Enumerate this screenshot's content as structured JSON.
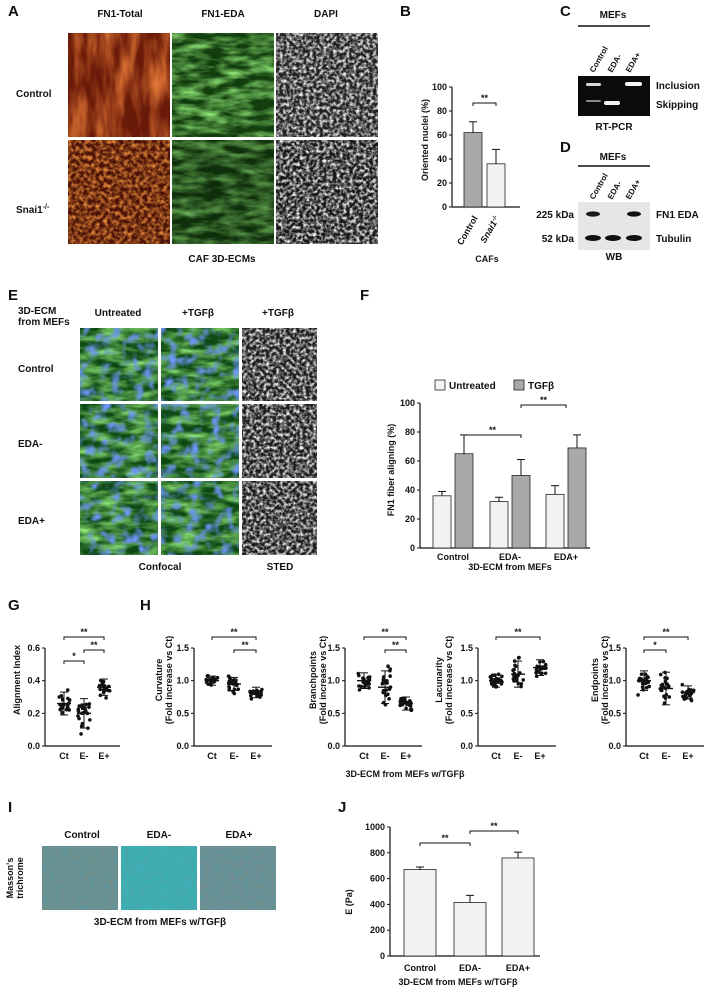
{
  "panels": {
    "A": {
      "letter": "A",
      "cols": [
        "FN1-Total",
        "FN1-EDA",
        "DAPI"
      ],
      "rows": [
        "Control",
        "Snai1"
      ],
      "row2_sup": "-/-",
      "caption": "CAF 3D-ECMs"
    },
    "B": {
      "letter": "B",
      "ylabel": "Oriented nuclei (%)",
      "ticks": [
        "0",
        "20",
        "40",
        "60",
        "80",
        "100"
      ],
      "categories": [
        "Control",
        "Snai1"
      ],
      "cat2_sup": "-/-",
      "sig": "**",
      "caption": "CAFs"
    },
    "C": {
      "letter": "C",
      "title": "MEFs",
      "lanes": [
        "Control",
        "EDA-",
        "EDA+"
      ],
      "bands": [
        "Inclusion",
        "Skipping"
      ],
      "caption": "RT-PCR"
    },
    "D": {
      "letter": "D",
      "title": "MEFs",
      "lanes": [
        "Control",
        "EDA-",
        "EDA+"
      ],
      "sizes": [
        "225 kDa",
        "52 kDa"
      ],
      "bands": [
        "FN1 EDA",
        "Tubulin"
      ],
      "caption": "WB"
    },
    "E": {
      "letter": "E",
      "corner": [
        "3D-ECM",
        "from MEFs"
      ],
      "cols": [
        "Untreated",
        "+TGFβ",
        "+TGFβ"
      ],
      "rows": [
        "Control",
        "EDA-",
        "EDA+"
      ],
      "bottom": [
        "Confocal",
        "STED"
      ]
    },
    "F": {
      "letter": "F",
      "legend": [
        "Untreated",
        "TGFβ"
      ],
      "ylabel": "FN1 fiber aligning (%)",
      "ticks": [
        "0",
        "20",
        "40",
        "60",
        "80",
        "100"
      ],
      "groups": [
        "Control",
        "EDA-",
        "EDA+"
      ],
      "sig": [
        "**",
        "**"
      ],
      "xlabel": "3D-ECM from MEFs"
    },
    "G": {
      "letter": "G",
      "ylabel": "Alignment Index",
      "ticks": [
        "0.0",
        "0.2",
        "0.4",
        "0.6"
      ],
      "groups": [
        "Ct",
        "E-",
        "E+"
      ],
      "sig": [
        "**",
        "*",
        "**"
      ]
    },
    "H": {
      "letter": "H",
      "xlabel": "3D-ECM from MEFs w/TGFβ",
      "groups": [
        "Ct",
        "E-",
        "E+"
      ],
      "ticks": [
        "0.0",
        "0.5",
        "1.0",
        "1.5"
      ],
      "plots": [
        {
          "ylabel": "Curvature",
          "ysub": "(Fold increase vs Ct)",
          "sig": [
            "**",
            "**"
          ]
        },
        {
          "ylabel": "Branchpoints",
          "ysub": "(Fold increase vs Ct)",
          "sig": [
            "**",
            "**"
          ]
        },
        {
          "ylabel": "Lacunarity",
          "ysub": "(Fold increase vs Ct)",
          "sig": [
            "**"
          ]
        },
        {
          "ylabel": "Endpoints",
          "ysub": "(Fold increase vs Ct)",
          "sig": [
            "**",
            "*"
          ]
        }
      ]
    },
    "I": {
      "letter": "I",
      "cols": [
        "Control",
        "EDA-",
        "EDA+"
      ],
      "ylabel": [
        "Masson's",
        "trichrome"
      ],
      "caption": "3D-ECM from MEFs w/TGFβ"
    },
    "J": {
      "letter": "J",
      "ylabel": "E (Pa)",
      "ticks": [
        "0",
        "200",
        "400",
        "600",
        "800",
        "1000"
      ],
      "categories": [
        "Control",
        "EDA-",
        "EDA+"
      ],
      "sig": [
        "**",
        "**"
      ],
      "xlabel": "3D-ECM from MEFs w/TGFβ"
    }
  },
  "chart_data": [
    {
      "type": "bar",
      "panel": "B",
      "categories": [
        "Control",
        "Snai1-/-"
      ],
      "values": [
        62,
        36
      ],
      "errors": [
        9,
        12
      ],
      "ylim": [
        0,
        100
      ]
    },
    {
      "type": "bar",
      "panel": "F",
      "categories": [
        "Control",
        "EDA-",
        "EDA+"
      ],
      "series": [
        {
          "name": "Untreated",
          "values": [
            36,
            32,
            37
          ],
          "errors": [
            3,
            3,
            6
          ]
        },
        {
          "name": "TGFβ",
          "values": [
            65,
            50,
            69
          ],
          "errors": [
            13,
            11,
            9
          ]
        }
      ],
      "ylim": [
        0,
        100
      ]
    },
    {
      "type": "scatter",
      "panel": "G",
      "categories": [
        "Ct",
        "E-",
        "E+"
      ],
      "means": [
        0.26,
        0.2,
        0.36
      ],
      "sds": [
        0.07,
        0.09,
        0.05
      ],
      "ylim": [
        0,
        0.6
      ]
    },
    {
      "type": "scatter",
      "panel": "H-Curvature",
      "categories": [
        "Ct",
        "E-",
        "E+"
      ],
      "means": [
        1.0,
        0.95,
        0.82
      ],
      "sds": [
        0.07,
        0.1,
        0.08
      ],
      "ylim": [
        0,
        1.5
      ]
    },
    {
      "type": "scatter",
      "panel": "H-Branchpoints",
      "categories": [
        "Ct",
        "E-",
        "E+"
      ],
      "means": [
        1.0,
        0.9,
        0.65
      ],
      "sds": [
        0.12,
        0.25,
        0.1
      ],
      "ylim": [
        0,
        1.5
      ]
    },
    {
      "type": "scatter",
      "panel": "H-Lacunarity",
      "categories": [
        "Ct",
        "E-",
        "E+"
      ],
      "means": [
        1.0,
        1.1,
        1.2
      ],
      "sds": [
        0.1,
        0.2,
        0.12
      ],
      "ylim": [
        0,
        1.5
      ]
    },
    {
      "type": "scatter",
      "panel": "H-Endpoints",
      "categories": [
        "Ct",
        "E-",
        "E+"
      ],
      "means": [
        1.0,
        0.88,
        0.82
      ],
      "sds": [
        0.15,
        0.25,
        0.1
      ],
      "ylim": [
        0,
        1.5
      ]
    },
    {
      "type": "bar",
      "panel": "J",
      "categories": [
        "Control",
        "EDA-",
        "EDA+"
      ],
      "values": [
        670,
        415,
        760
      ],
      "errors": [
        20,
        55,
        45
      ],
      "ylim": [
        0,
        1000
      ]
    }
  ],
  "colors": {
    "dark_bar": "#a9a9a9",
    "light_bar": "#f2f2f2",
    "green": "#2fa12b",
    "red": "#c8431a",
    "blue": "#1e3fd0",
    "teal": "#3aa0a6"
  }
}
